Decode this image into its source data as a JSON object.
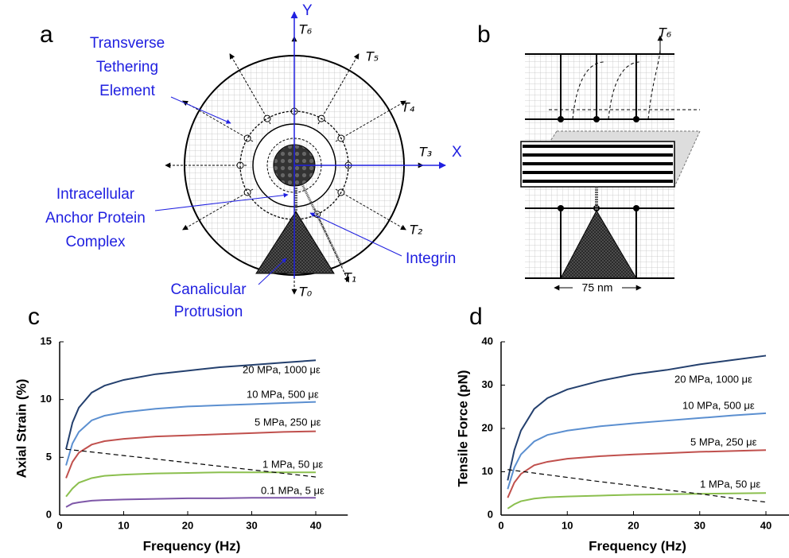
{
  "panel_a": {
    "letter": "a",
    "labels": {
      "tether": [
        "Transverse",
        "Tethering",
        "Element"
      ],
      "anchor": [
        "Intracellular",
        "Anchor Protein",
        "Complex"
      ],
      "protrusion": [
        "Canalicular",
        "Protrusion"
      ],
      "integrin": "Integrin"
    },
    "axes": {
      "x": "X",
      "y": "Y"
    },
    "tensions": [
      "T₆",
      "T₅",
      "T₄",
      "T₃",
      "T₂",
      "T₁",
      "T₀"
    ]
  },
  "panel_b": {
    "letter": "b",
    "tension": "T₆",
    "scale": "75 nm"
  },
  "chart_data": [
    {
      "type": "line",
      "letter": "c",
      "xlabel": "Frequency (Hz)",
      "ylabel": "Axial Strain (%)",
      "x": [
        1,
        2,
        3,
        5,
        7,
        10,
        15,
        20,
        25,
        30,
        35,
        40
      ],
      "xlim": [
        0,
        45
      ],
      "xticks": [
        0,
        10,
        20,
        30,
        40
      ],
      "ylim": [
        0,
        15
      ],
      "yticks": [
        0,
        5,
        10,
        15
      ],
      "series": [
        {
          "name": "20 MPa, 1000 με",
          "color": "#24406e",
          "values": [
            5.7,
            8.0,
            9.3,
            10.6,
            11.2,
            11.7,
            12.2,
            12.5,
            12.8,
            13.0,
            13.2,
            13.4
          ]
        },
        {
          "name": "10 MPa, 500 με",
          "color": "#5b8fd0",
          "values": [
            4.3,
            6.2,
            7.2,
            8.2,
            8.6,
            8.9,
            9.2,
            9.4,
            9.5,
            9.6,
            9.7,
            9.8
          ]
        },
        {
          "name": "5 MPa, 250 με",
          "color": "#c0504d",
          "values": [
            3.2,
            4.6,
            5.4,
            6.1,
            6.4,
            6.6,
            6.8,
            6.9,
            7.0,
            7.1,
            7.2,
            7.25
          ]
        },
        {
          "name": "1 MPa, 50 με",
          "color": "#8bbf4e",
          "values": [
            1.6,
            2.3,
            2.8,
            3.2,
            3.4,
            3.5,
            3.6,
            3.65,
            3.7,
            3.7,
            3.7,
            3.7
          ]
        },
        {
          "name": "0.1 MPa, 5 με",
          "color": "#7e57a8",
          "values": [
            0.7,
            1.0,
            1.1,
            1.25,
            1.3,
            1.35,
            1.4,
            1.45,
            1.45,
            1.5,
            1.5,
            1.5
          ]
        },
        {
          "color": "#000000",
          "dashed": true,
          "values": [
            5.7,
            5.64,
            5.58,
            5.46,
            5.34,
            5.15,
            4.85,
            4.54,
            4.23,
            3.92,
            3.61,
            3.3
          ]
        }
      ]
    },
    {
      "type": "line",
      "letter": "d",
      "xlabel": "Frequency (Hz)",
      "ylabel": "Tensile Force (pN)",
      "x": [
        1,
        2,
        3,
        5,
        7,
        10,
        15,
        20,
        25,
        30,
        35,
        40
      ],
      "xlim": [
        0,
        45
      ],
      "xticks": [
        0,
        10,
        20,
        30,
        40
      ],
      "ylim": [
        0,
        40
      ],
      "yticks": [
        0,
        10,
        20,
        30,
        40
      ],
      "series": [
        {
          "name": "20 MPa, 1000 με",
          "color": "#24406e",
          "values": [
            8,
            15,
            19.5,
            24.5,
            27,
            29,
            31,
            32.5,
            33.5,
            34.8,
            35.8,
            36.8
          ]
        },
        {
          "name": "10 MPa, 500 με",
          "color": "#5b8fd0",
          "values": [
            6,
            11,
            14,
            17,
            18.5,
            19.5,
            20.5,
            21.2,
            21.8,
            22.4,
            23,
            23.5
          ]
        },
        {
          "name": "5 MPa, 250 με",
          "color": "#c0504d",
          "values": [
            4,
            7.5,
            9.5,
            11.5,
            12.3,
            13,
            13.6,
            14,
            14.3,
            14.6,
            14.8,
            15
          ]
        },
        {
          "name": "1 MPa, 50 με",
          "color": "#8bbf4e",
          "values": [
            1.5,
            2.5,
            3.2,
            3.8,
            4.1,
            4.3,
            4.5,
            4.7,
            4.8,
            4.9,
            5,
            5.1
          ]
        },
        {
          "color": "#000000",
          "dashed": true,
          "values": [
            10.5,
            10.3,
            10.1,
            9.7,
            9.3,
            8.7,
            7.7,
            6.8,
            5.8,
            4.9,
            3.9,
            3
          ]
        }
      ]
    }
  ]
}
